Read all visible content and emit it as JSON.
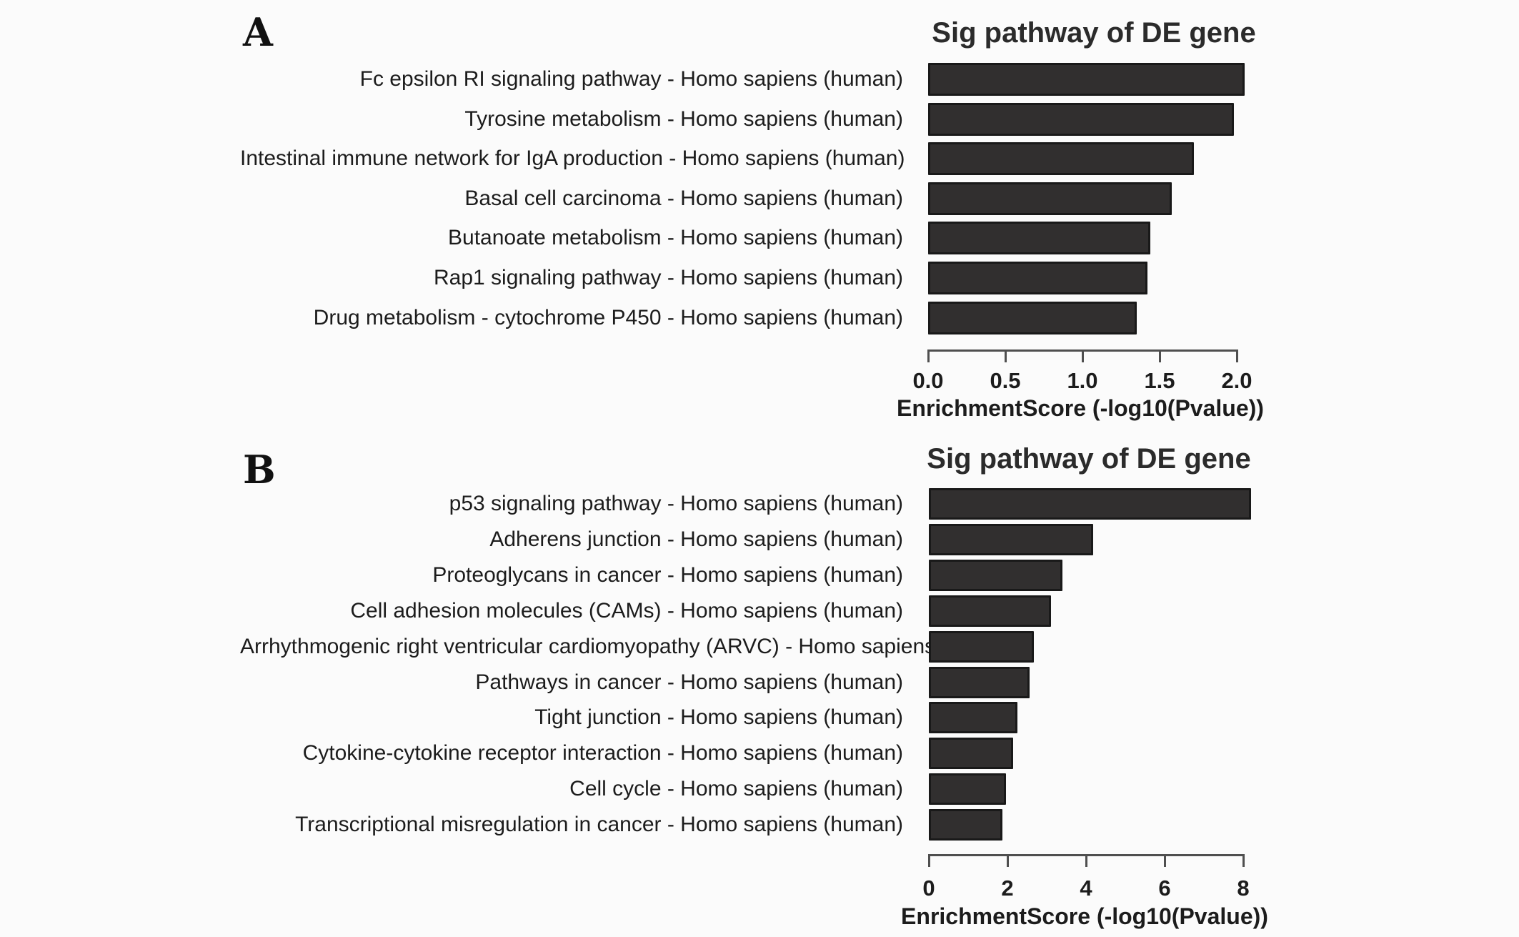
{
  "figure": {
    "background_color": "#fbfbfb",
    "bar_fill_color": "#312f2f",
    "bar_border_color": "#191919"
  },
  "chart_data": [
    {
      "type": "bar",
      "orientation": "horizontal",
      "panel_letter": "A",
      "title": "Sig pathway of DE gene",
      "xlabel": "EnrichmentScore (-log10(Pvalue))",
      "xlim": [
        0,
        2
      ],
      "grid": false,
      "legend": "none",
      "categories": [
        "Fc epsilon RI signaling pathway - Homo sapiens (human)",
        "Tyrosine metabolism - Homo sapiens (human)",
        "Intestinal immune network for IgA production - Homo sapiens (human)",
        "Basal cell carcinoma - Homo sapiens (human)",
        "Butanoate metabolism - Homo sapiens (human)",
        "Rap1 signaling pathway - Homo sapiens (human)",
        "Drug metabolism - cytochrome P450 - Homo sapiens (human)"
      ],
      "values": [
        2.05,
        1.98,
        1.72,
        1.58,
        1.44,
        1.42,
        1.35
      ],
      "ticks": {
        "values": [
          0,
          0.5,
          1,
          1.5,
          2
        ],
        "labels": [
          "0.0",
          "0.5",
          "1.0",
          "1.5",
          "2.0"
        ]
      }
    },
    {
      "type": "bar",
      "orientation": "horizontal",
      "panel_letter": "B",
      "title": "Sig pathway of DE gene",
      "xlabel": "EnrichmentScore (-log10(Pvalue))",
      "xlim": [
        0,
        8
      ],
      "grid": false,
      "legend": "none",
      "categories": [
        "p53 signaling pathway - Homo sapiens (human)",
        "Adherens junction - Homo sapiens (human)",
        "Proteoglycans in cancer - Homo sapiens (human)",
        "Cell adhesion molecules (CAMs) - Homo sapiens (human)",
        "Arrhythmogenic right ventricular cardiomyopathy (ARVC) - Homo sapiens (human)",
        "Pathways in cancer - Homo sapiens (human)",
        "Tight junction - Homo sapiens (human)",
        "Cytokine-cytokine receptor interaction - Homo sapiens (human)",
        "Cell cycle - Homo sapiens (human)",
        "Transcriptional misregulation in cancer - Homo sapiens (human)"
      ],
      "values": [
        8.2,
        4.18,
        3.4,
        3.1,
        2.67,
        2.57,
        2.25,
        2.15,
        1.96,
        1.88
      ],
      "ticks": {
        "values": [
          0,
          2,
          4,
          6,
          8
        ],
        "labels": [
          "0",
          "2",
          "4",
          "6",
          "8"
        ]
      }
    }
  ]
}
